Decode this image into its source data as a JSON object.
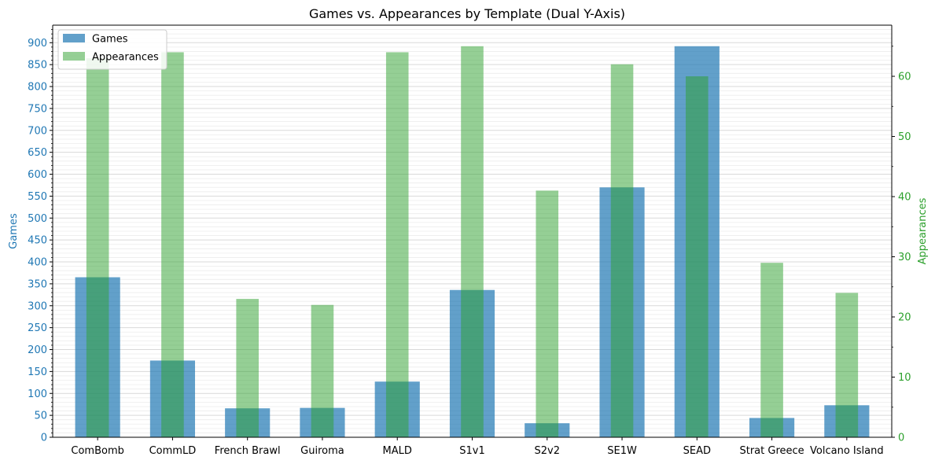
{
  "chart_data": {
    "type": "bar",
    "title": "Games vs. Appearances by Template (Dual Y-Axis)",
    "categories": [
      "ComBomb",
      "CommLD",
      "French Brawl",
      "Guiroma",
      "MALD",
      "S1v1",
      "S2v2",
      "SE1W",
      "SEAD",
      "Strat Greece",
      "Volcano Island"
    ],
    "series": [
      {
        "name": "Games",
        "axis": "left",
        "color": "#1f77b4",
        "values": [
          365,
          175,
          66,
          67,
          127,
          336,
          32,
          570,
          892,
          44,
          73
        ]
      },
      {
        "name": "Appearances",
        "axis": "right",
        "color": "#2ca02c",
        "values": [
          63,
          64,
          23,
          22,
          64,
          65,
          41,
          62,
          60,
          29,
          24
        ]
      }
    ],
    "ylabel_left": "Games",
    "ylabel_right": "Appearances",
    "ylim_left": [
      0,
      940
    ],
    "ylim_right": [
      0,
      68.5
    ],
    "yticks_left": [
      0,
      50,
      100,
      150,
      200,
      250,
      300,
      350,
      400,
      450,
      500,
      550,
      600,
      650,
      700,
      750,
      800,
      850,
      900
    ],
    "yticks_right": [
      0,
      10,
      20,
      30,
      40,
      50,
      60
    ],
    "grid": true,
    "legend_position": "top-left",
    "left_axis_color": "#1f77b4",
    "right_axis_color": "#2ca02c"
  }
}
